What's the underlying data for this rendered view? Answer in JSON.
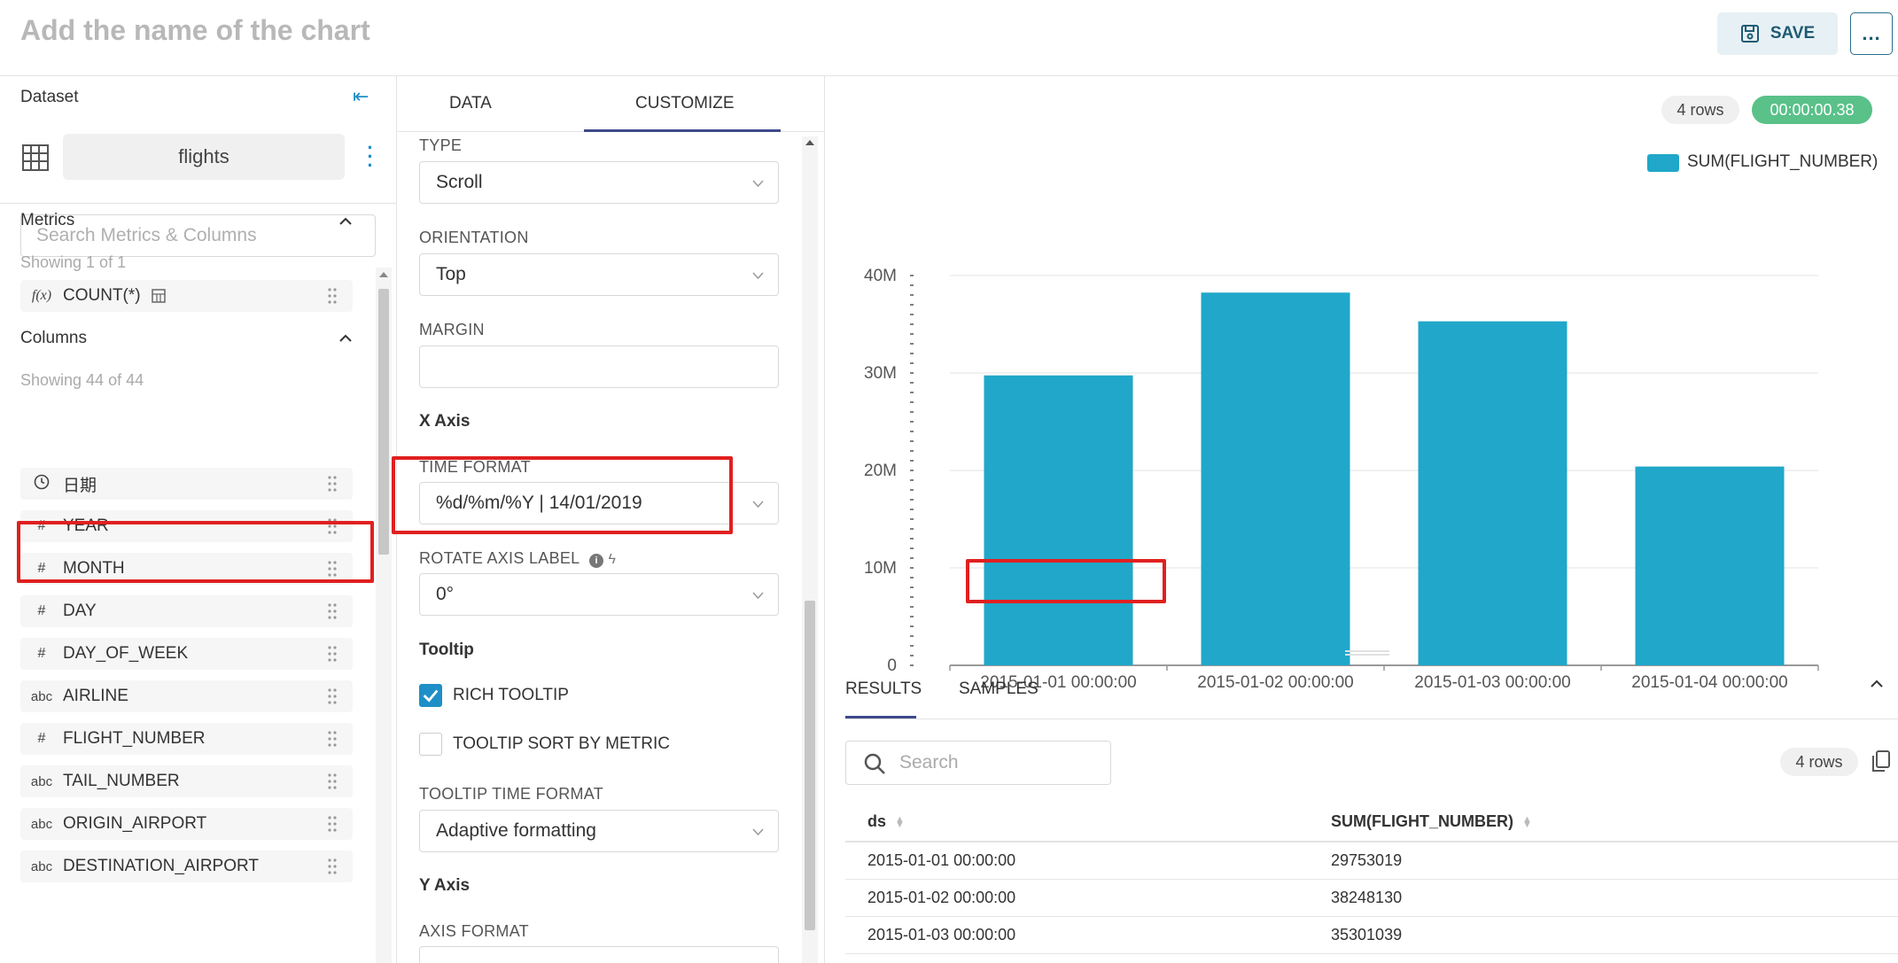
{
  "header": {
    "title": "Add the name of the chart",
    "save_label": "SAVE",
    "more_label": "..."
  },
  "dataset_panel": {
    "label": "Dataset",
    "name": "flights",
    "search_placeholder": "Search Metrics & Columns",
    "metrics_title": "Metrics",
    "metrics_showing": "Showing 1 of 1",
    "metrics": [
      {
        "icon": "f(x)",
        "name": "COUNT(*)"
      }
    ],
    "columns_title": "Columns",
    "columns_showing": "Showing 44 of 44",
    "columns": [
      {
        "icon": "clock",
        "name": "日期"
      },
      {
        "icon": "#",
        "name": "YEAR"
      },
      {
        "icon": "#",
        "name": "MONTH"
      },
      {
        "icon": "#",
        "name": "DAY"
      },
      {
        "icon": "#",
        "name": "DAY_OF_WEEK"
      },
      {
        "icon": "abc",
        "name": "AIRLINE"
      },
      {
        "icon": "#",
        "name": "FLIGHT_NUMBER"
      },
      {
        "icon": "abc",
        "name": "TAIL_NUMBER"
      },
      {
        "icon": "abc",
        "name": "ORIGIN_AIRPORT"
      },
      {
        "icon": "abc",
        "name": "DESTINATION_AIRPORT"
      }
    ]
  },
  "customize_panel": {
    "tabs": [
      "DATA",
      "CUSTOMIZE"
    ],
    "active_tab": "CUSTOMIZE",
    "type_label": "TYPE",
    "type_value": "Scroll",
    "orientation_label": "ORIENTATION",
    "orientation_value": "Top",
    "margin_label": "MARGIN",
    "margin_value": "",
    "x_axis_title": "X Axis",
    "time_format_label": "TIME FORMAT",
    "time_format_value": "%d/%m/%Y | 14/01/2019",
    "rotate_label": "ROTATE AXIS LABEL",
    "rotate_value": "0°",
    "tooltip_title": "Tooltip",
    "rich_tooltip_label": "RICH TOOLTIP",
    "rich_tooltip_checked": true,
    "tooltip_sort_label": "TOOLTIP SORT BY METRIC",
    "tooltip_sort_checked": false,
    "tooltip_time_format_label": "TOOLTIP TIME FORMAT",
    "tooltip_time_format_value": "Adaptive formatting",
    "y_axis_title": "Y Axis",
    "axis_format_label": "AXIS FORMAT"
  },
  "results_panel": {
    "row_count": "4 rows",
    "duration": "00:00:00.38",
    "tabs": [
      "RESULTS",
      "SAMPLES"
    ],
    "search_placeholder": "Search",
    "table_rows_badge": "4 rows",
    "columns": [
      "ds",
      "SUM(FLIGHT_NUMBER)"
    ],
    "rows": [
      [
        "2015-01-01 00:00:00",
        "29753019"
      ],
      [
        "2015-01-02 00:00:00",
        "38248130"
      ],
      [
        "2015-01-03 00:00:00",
        "35301039"
      ]
    ]
  },
  "chart_data": {
    "type": "bar",
    "categories": [
      "2015-01-01 00:00:00",
      "2015-01-02 00:00:00",
      "2015-01-03 00:00:00",
      "2015-01-04 00:00:00"
    ],
    "series": [
      {
        "name": "SUM(FLIGHT_NUMBER)",
        "values": [
          29753019,
          38248130,
          35301039,
          20400000
        ],
        "color": "#20a7c9"
      }
    ],
    "ylim": [
      0,
      40000000
    ],
    "yticks": [
      "0",
      "10M",
      "20M",
      "30M",
      "40M"
    ],
    "legend": "top-right",
    "grid": true
  },
  "colors": {
    "accent": "#20a7c9",
    "highlight": "#e02020",
    "success": "#5ac189"
  }
}
